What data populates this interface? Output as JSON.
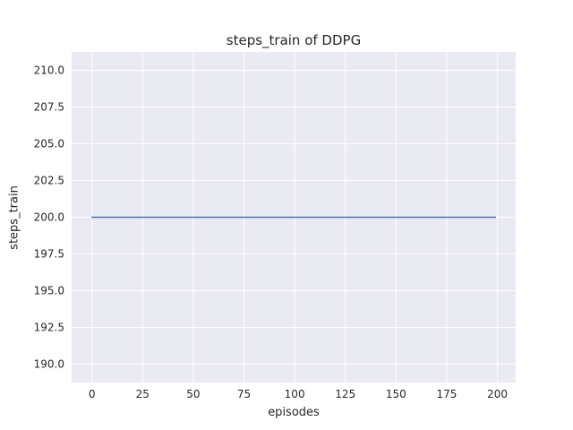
{
  "chart_data": {
    "type": "line",
    "title": "steps_train of DDPG",
    "xlabel": "episodes",
    "ylabel": "steps_train",
    "xlim": [
      -10,
      209
    ],
    "ylim": [
      188.75,
      211.25
    ],
    "grid": true,
    "legend_position": "none",
    "plot_background": "#eaeaf2",
    "grid_color": "#ffffff",
    "figure_background": "#ffffff",
    "text_color": "#262626",
    "xticks": {
      "values": [
        0,
        25,
        50,
        75,
        100,
        125,
        150,
        175,
        200
      ],
      "labels": [
        "0",
        "25",
        "50",
        "75",
        "100",
        "125",
        "150",
        "175",
        "200"
      ]
    },
    "yticks": {
      "values": [
        190.0,
        192.5,
        195.0,
        197.5,
        200.0,
        202.5,
        205.0,
        207.5,
        210.0
      ],
      "labels": [
        "190.0",
        "192.5",
        "195.0",
        "197.5",
        "200.0",
        "202.5",
        "205.0",
        "207.5",
        "210.0"
      ]
    },
    "series": [
      {
        "name": "steps_train",
        "color": "#4c72b0",
        "x": [
          0,
          199
        ],
        "y": [
          200,
          200
        ]
      }
    ]
  }
}
